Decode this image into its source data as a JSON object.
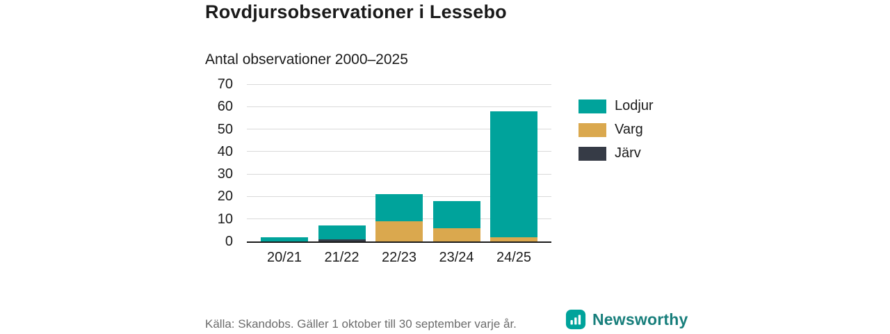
{
  "title": "Rovdjursobservationer i Lessebo",
  "subtitle": "Antal observationer 2000–2025",
  "footer": {
    "source": "Källa: Skandobs. Gäller 1 oktober till 30 september varje år.",
    "brand": "Newsworthy"
  },
  "colors": {
    "lodjur": "#00a39b",
    "varg": "#daa84e",
    "jarv": "#363b46",
    "axis": "#1a1a1a",
    "grid": "#d9d9d9",
    "brand_teal": "#00a39b",
    "brand_text": "#177e7b"
  },
  "chart_data": {
    "type": "bar",
    "stacked": true,
    "title": "Rovdjursobservationer i Lessebo",
    "subtitle": "Antal observationer 2000–2025",
    "categories": [
      "20/21",
      "21/22",
      "22/23",
      "23/24",
      "24/25"
    ],
    "series": [
      {
        "name": "Lodjur",
        "color": "#00a39b",
        "values": [
          2,
          6,
          12,
          12,
          56
        ]
      },
      {
        "name": "Varg",
        "color": "#daa84e",
        "values": [
          0,
          0,
          9,
          6,
          2
        ]
      },
      {
        "name": "Järv",
        "color": "#363b46",
        "values": [
          0,
          1,
          0,
          0,
          0
        ]
      }
    ],
    "totals": [
      2,
      7,
      21,
      18,
      58
    ],
    "ylim": [
      0,
      70
    ],
    "ytick_step": 10,
    "grid": true,
    "legend_position": "right",
    "xlabel": "",
    "ylabel": ""
  }
}
